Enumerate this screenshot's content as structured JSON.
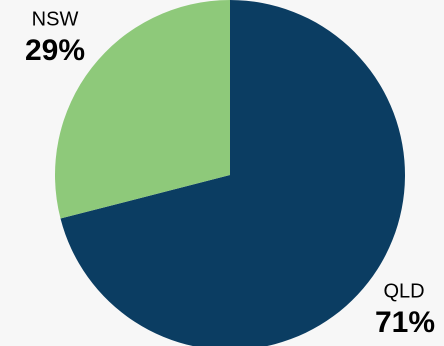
{
  "chart_data": {
    "type": "pie",
    "categories": [
      "QLD",
      "NSW"
    ],
    "values": [
      71,
      29
    ],
    "value_labels": [
      "71%",
      "29%"
    ],
    "colors": [
      "#0b3d62",
      "#8ec97a"
    ]
  }
}
